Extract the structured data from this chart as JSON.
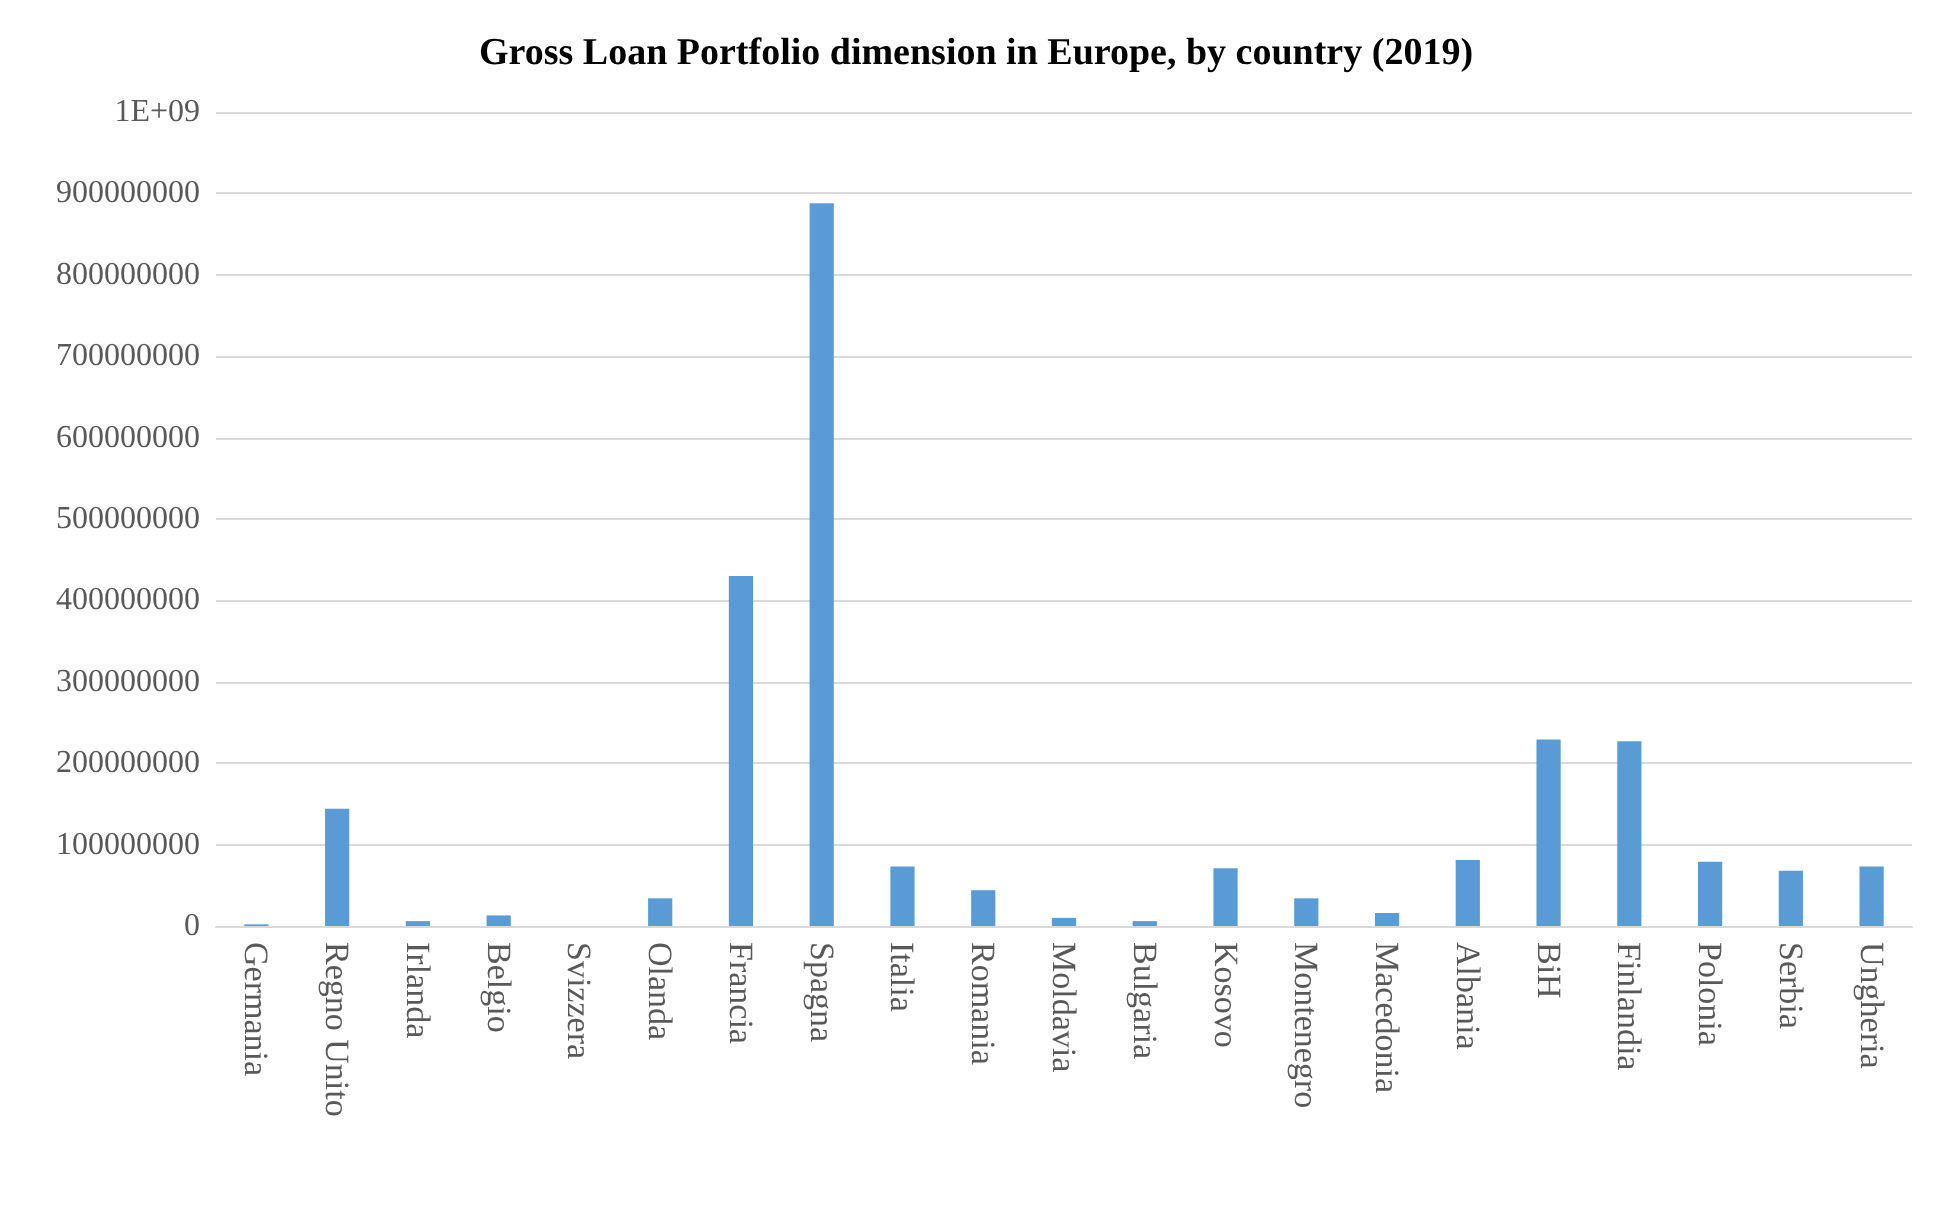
{
  "chart_data": {
    "type": "bar",
    "title": "Gross Loan Portfolio dimension in Europe, by country (2019)",
    "categories": [
      "Germania",
      "Regno Unito",
      "Irlanda",
      "Belgio",
      "Svizzera",
      "Olanda",
      "Francia",
      "Spagna",
      "Italia",
      "Romania",
      "Moldavia",
      "Bulgaria",
      "Kosovo",
      "Montenegro",
      "Macedonia",
      "Albania",
      "BiH",
      "Finlandia",
      "Polonia",
      "Serbia",
      "Ungheria"
    ],
    "values": [
      2000000,
      144000000,
      6000000,
      13000000,
      0,
      34000000,
      430000000,
      888000000,
      73000000,
      44000000,
      10000000,
      6000000,
      71000000,
      34000000,
      16000000,
      81000000,
      229000000,
      227000000,
      79000000,
      68000000,
      73000000
    ],
    "color": "#5b9bd5",
    "ylim": [
      0,
      1000000000
    ],
    "yticks": [
      0,
      100000000,
      200000000,
      300000000,
      400000000,
      500000000,
      600000000,
      700000000,
      800000000,
      900000000,
      {
        "value": 1000000000,
        "label": "1E+09"
      }
    ],
    "grid": "y"
  }
}
